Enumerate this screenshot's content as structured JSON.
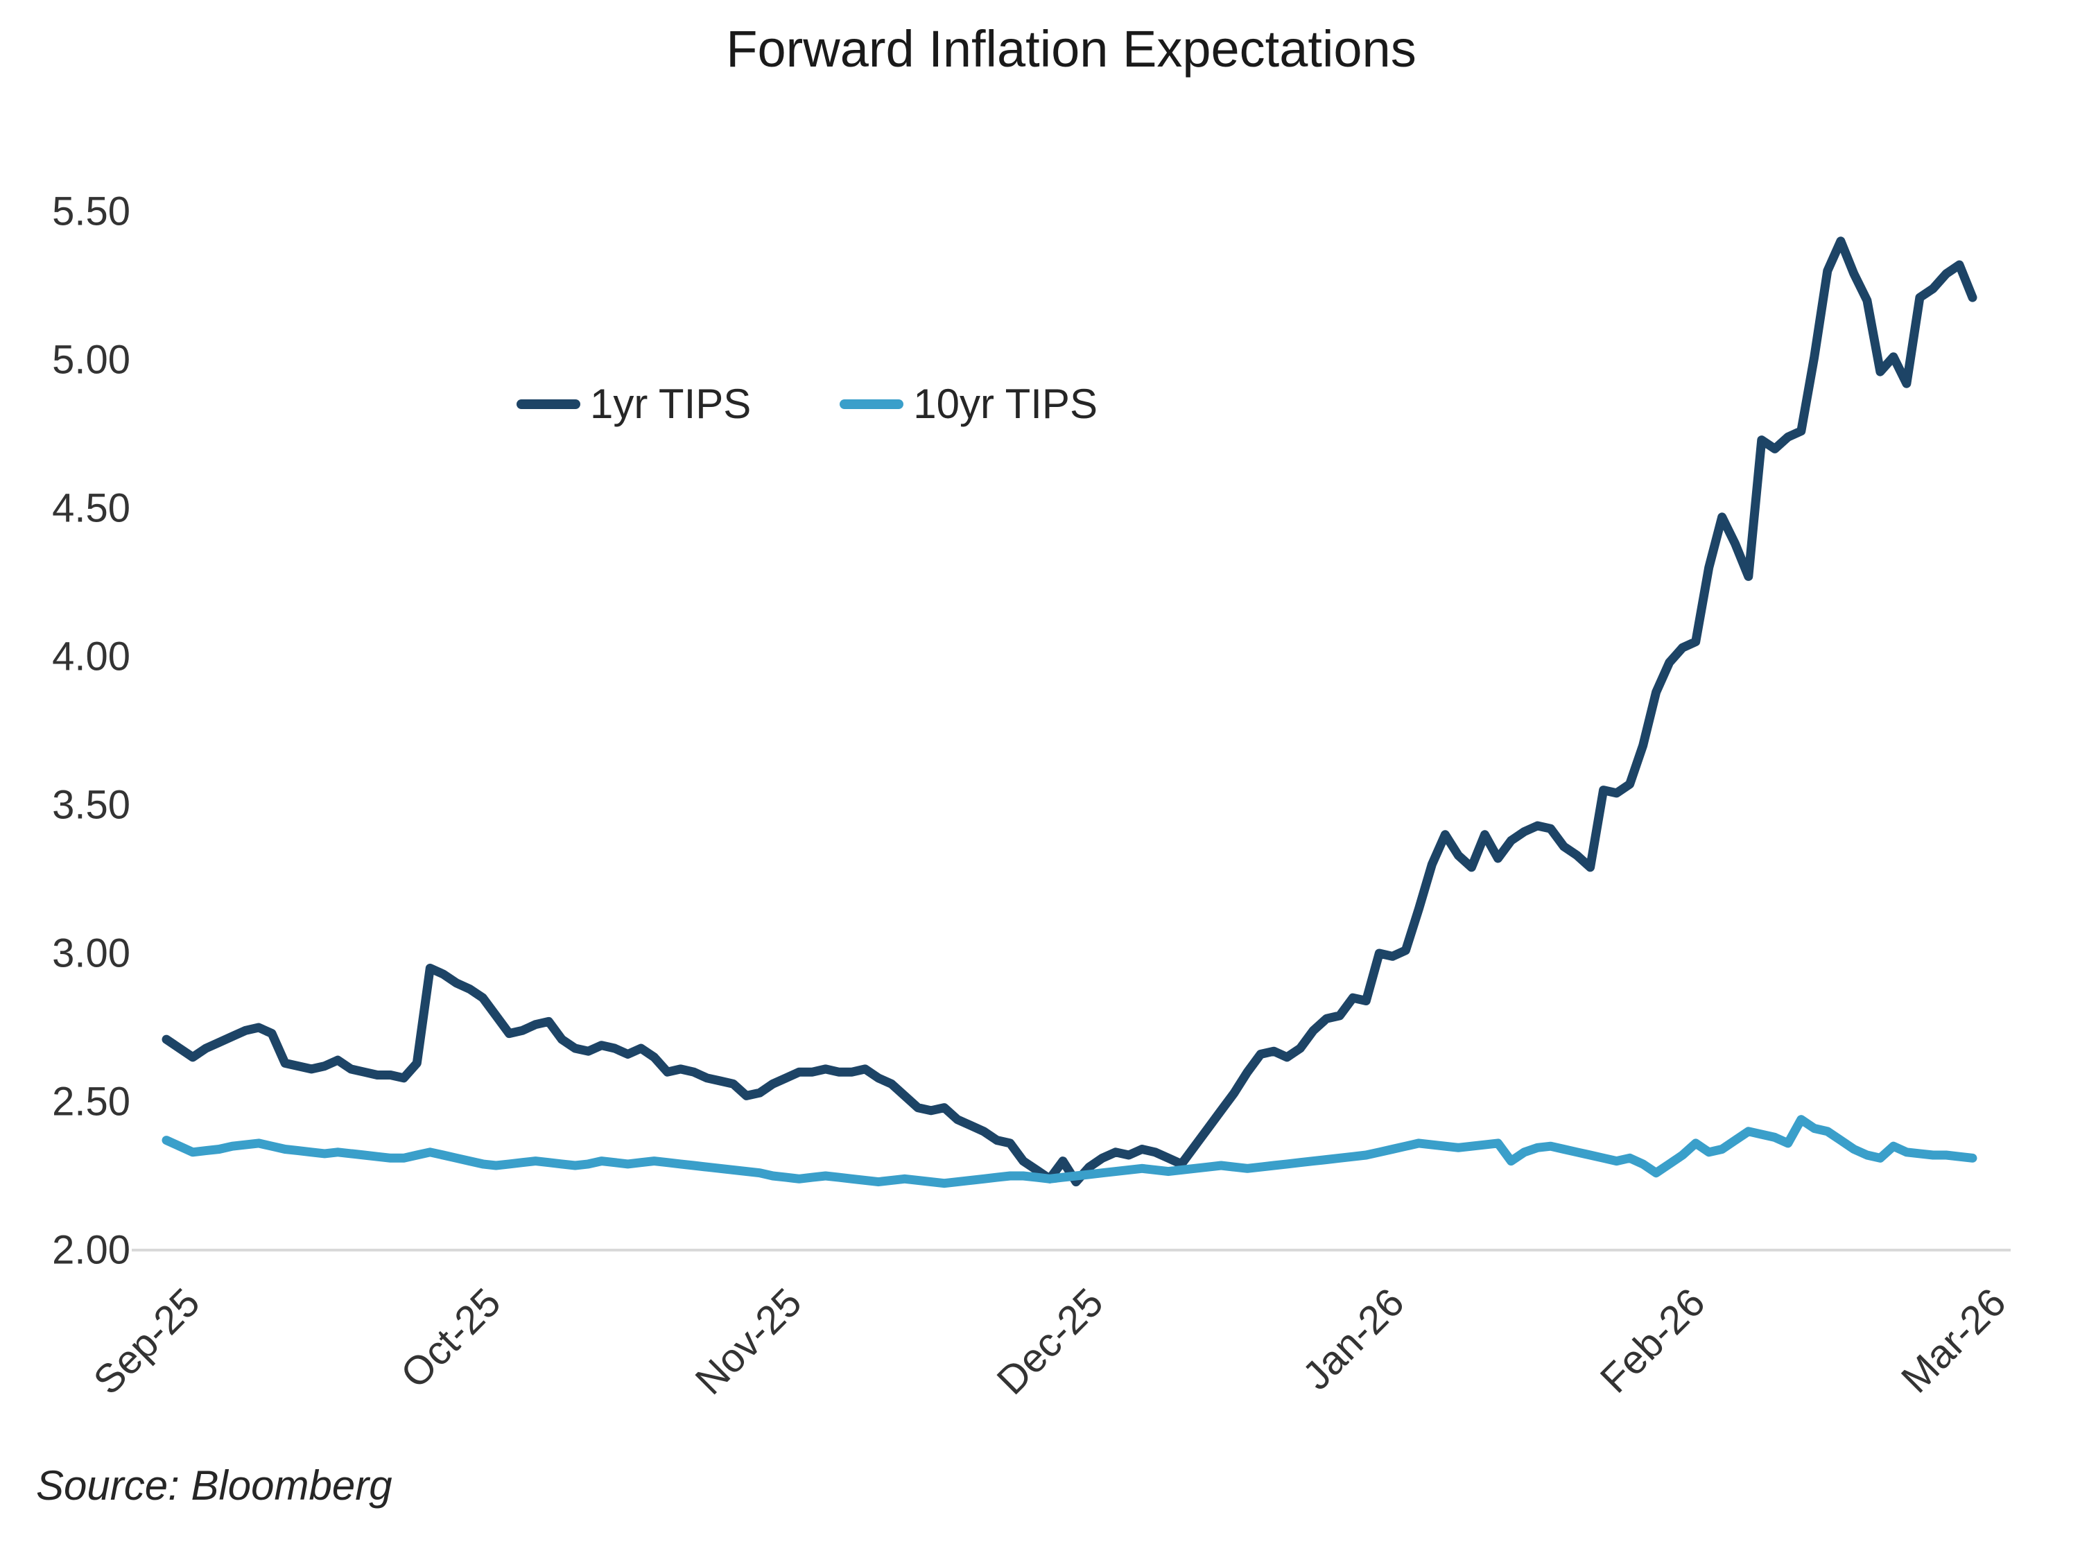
{
  "title": "Forward Inflation Expectations",
  "source_note": "Source: Bloomberg",
  "legend": [
    {
      "label": "1yr TIPS",
      "color": "#1d4466"
    },
    {
      "label": "10yr TIPS",
      "color": "#3a9fca"
    }
  ],
  "chart_data": {
    "type": "line",
    "title": "Forward Inflation Expectations",
    "xlabel": "",
    "ylabel": "",
    "ylim": [
      2.0,
      5.5
    ],
    "grid": false,
    "baseline_gridline": 2.0,
    "legend_position": "inside-top-left",
    "x_tick_labels": [
      "Sep-25",
      "Oct-25",
      "Nov-25",
      "Dec-25",
      "Jan-26",
      "Feb-26",
      "Mar-26"
    ],
    "y_ticks": [
      {
        "label": "5.50",
        "value": 5.5
      },
      {
        "label": "5.00",
        "value": 5.0
      },
      {
        "label": "4.50",
        "value": 4.5
      },
      {
        "label": "4.00",
        "value": 4.0
      },
      {
        "label": "3.50",
        "value": 3.5
      },
      {
        "label": "3.00",
        "value": 3.0
      },
      {
        "label": "2.50",
        "value": 2.5
      },
      {
        "label": "2.00",
        "value": 2.0
      }
    ],
    "series": [
      {
        "name": "1yr TIPS",
        "color": "#1d4466",
        "values": [
          2.71,
          2.68,
          2.65,
          2.68,
          2.7,
          2.72,
          2.74,
          2.75,
          2.73,
          2.63,
          2.62,
          2.61,
          2.62,
          2.64,
          2.61,
          2.6,
          2.59,
          2.59,
          2.58,
          2.63,
          2.95,
          2.93,
          2.9,
          2.88,
          2.85,
          2.79,
          2.73,
          2.74,
          2.76,
          2.77,
          2.71,
          2.68,
          2.67,
          2.69,
          2.68,
          2.66,
          2.68,
          2.65,
          2.6,
          2.61,
          2.6,
          2.58,
          2.57,
          2.56,
          2.52,
          2.53,
          2.56,
          2.58,
          2.6,
          2.6,
          2.61,
          2.6,
          2.6,
          2.61,
          2.58,
          2.56,
          2.52,
          2.48,
          2.47,
          2.48,
          2.44,
          2.42,
          2.4,
          2.37,
          2.36,
          2.3,
          2.27,
          2.24,
          2.3,
          2.23,
          2.28,
          2.31,
          2.33,
          2.32,
          2.34,
          2.33,
          2.31,
          2.29,
          2.35,
          2.41,
          2.47,
          2.53,
          2.6,
          2.66,
          2.67,
          2.65,
          2.68,
          2.74,
          2.78,
          2.79,
          2.85,
          2.84,
          3.0,
          2.99,
          3.01,
          3.15,
          3.3,
          3.4,
          3.33,
          3.29,
          3.4,
          3.32,
          3.38,
          3.41,
          3.43,
          3.42,
          3.36,
          3.33,
          3.29,
          3.55,
          3.54,
          3.57,
          3.7,
          3.88,
          3.98,
          4.03,
          4.05,
          4.3,
          4.47,
          4.38,
          4.27,
          4.73,
          4.7,
          4.74,
          4.76,
          5.01,
          5.3,
          5.4,
          5.29,
          5.2,
          4.96,
          5.01,
          4.92,
          5.21,
          5.24,
          5.29,
          5.32,
          5.21
        ]
      },
      {
        "name": "10yr TIPS",
        "color": "#3a9fca",
        "values": [
          2.37,
          2.35,
          2.33,
          2.335,
          2.34,
          2.35,
          2.355,
          2.36,
          2.35,
          2.34,
          2.335,
          2.33,
          2.325,
          2.33,
          2.325,
          2.32,
          2.315,
          2.31,
          2.31,
          2.32,
          2.33,
          2.32,
          2.31,
          2.3,
          2.29,
          2.285,
          2.29,
          2.295,
          2.3,
          2.295,
          2.29,
          2.285,
          2.29,
          2.3,
          2.295,
          2.29,
          2.295,
          2.3,
          2.295,
          2.29,
          2.285,
          2.28,
          2.275,
          2.27,
          2.265,
          2.26,
          2.25,
          2.245,
          2.24,
          2.245,
          2.25,
          2.245,
          2.24,
          2.235,
          2.23,
          2.235,
          2.24,
          2.235,
          2.23,
          2.225,
          2.23,
          2.235,
          2.24,
          2.245,
          2.25,
          2.25,
          2.245,
          2.24,
          2.245,
          2.25,
          2.255,
          2.26,
          2.265,
          2.27,
          2.275,
          2.27,
          2.265,
          2.27,
          2.275,
          2.28,
          2.285,
          2.28,
          2.275,
          2.28,
          2.285,
          2.29,
          2.295,
          2.3,
          2.305,
          2.31,
          2.315,
          2.32,
          2.33,
          2.34,
          2.35,
          2.36,
          2.355,
          2.35,
          2.345,
          2.35,
          2.355,
          2.36,
          2.3,
          2.33,
          2.345,
          2.35,
          2.34,
          2.33,
          2.32,
          2.31,
          2.3,
          2.31,
          2.29,
          2.26,
          2.29,
          2.32,
          2.36,
          2.33,
          2.34,
          2.37,
          2.4,
          2.39,
          2.38,
          2.36,
          2.44,
          2.41,
          2.4,
          2.37,
          2.34,
          2.32,
          2.31,
          2.35,
          2.33,
          2.325,
          2.32,
          2.32,
          2.315,
          2.31
        ]
      }
    ]
  }
}
